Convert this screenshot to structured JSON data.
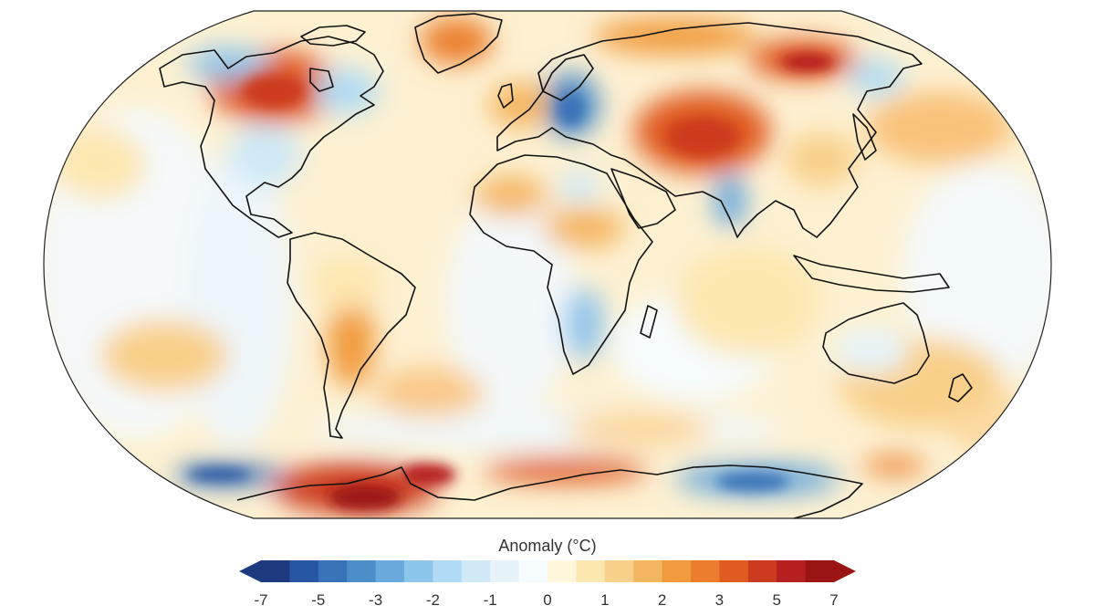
{
  "legend": {
    "title": "Anomaly (°C)",
    "colors": [
      "#1f3b7f",
      "#2756a3",
      "#3a72b7",
      "#4d8dc8",
      "#6aa9dc",
      "#8ec5ea",
      "#b0dbf4",
      "#cfe9f7",
      "#e6f4fa",
      "#f6fbfd",
      "#fff6dc",
      "#fde7b0",
      "#f9d08a",
      "#f5b662",
      "#f19b3e",
      "#eb7d2c",
      "#e05b21",
      "#cc3a1f",
      "#b61f1f",
      "#9b1414"
    ],
    "labels": [
      "-7",
      "-5",
      "-3",
      "-2",
      "-1",
      "0",
      "1",
      "2",
      "3",
      "5",
      "7"
    ]
  },
  "map": {
    "ocean_base_color": "#fdf1d2",
    "coastline_color": "#111111",
    "graticule": "none"
  }
}
